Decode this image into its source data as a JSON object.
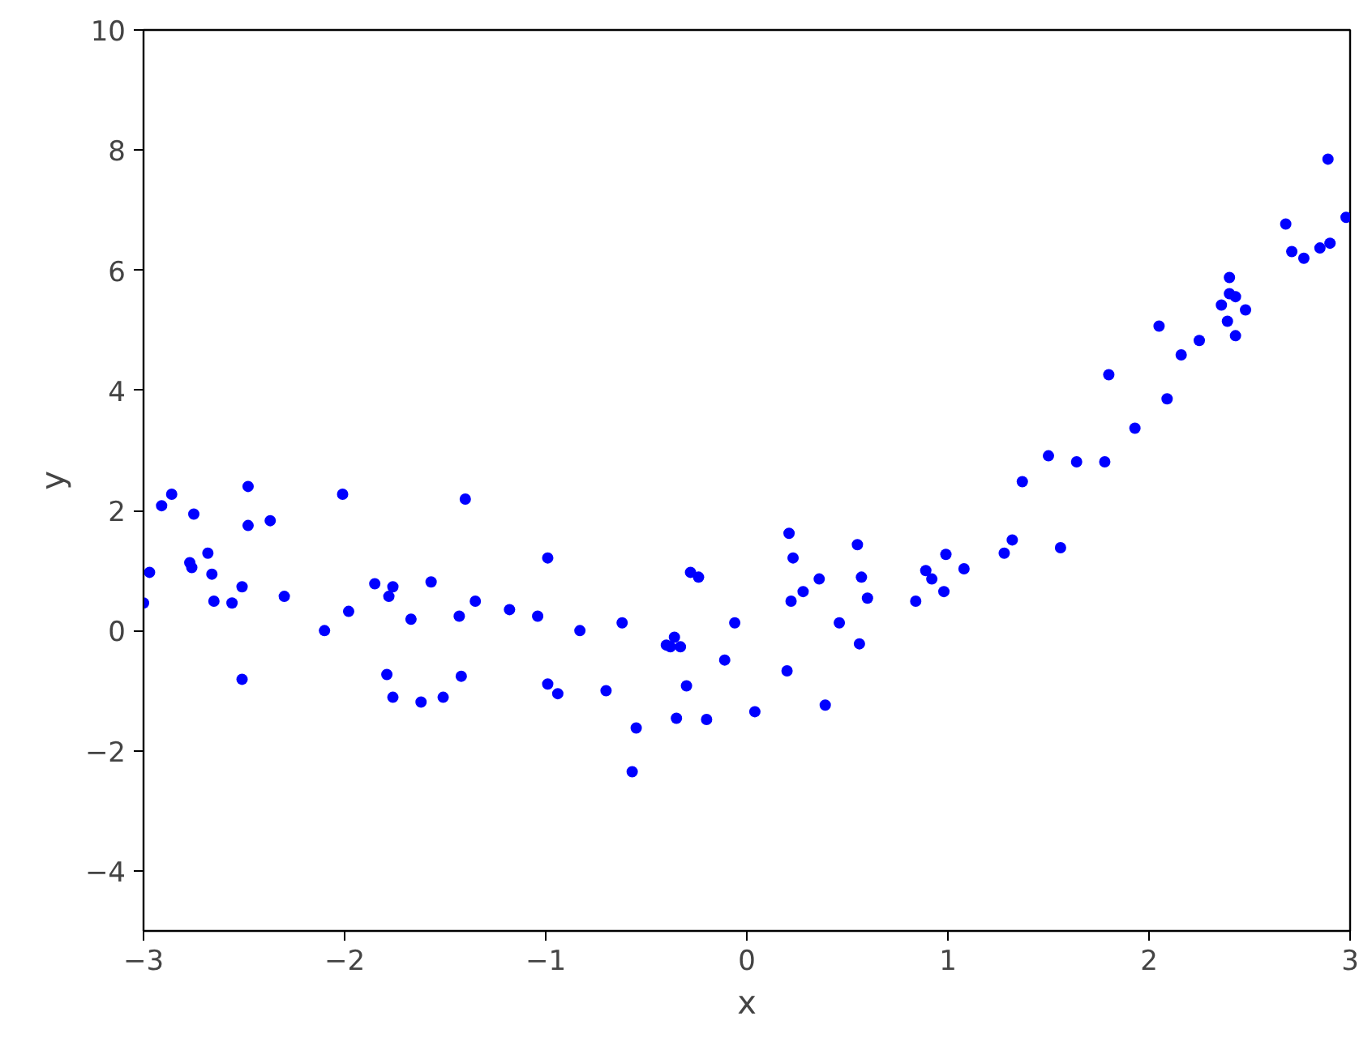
{
  "chart_data": {
    "type": "scatter",
    "xlabel": "x",
    "ylabel": "y",
    "xlim": [
      -3,
      3
    ],
    "ylim": [
      -5,
      10
    ],
    "xticks": [
      {
        "value": -3,
        "label": "−3"
      },
      {
        "value": -2,
        "label": "−2"
      },
      {
        "value": -1,
        "label": "−1"
      },
      0,
      1,
      2,
      3
    ],
    "yticks": [
      {
        "value": -4,
        "label": "−4"
      },
      {
        "value": -2,
        "label": "−2"
      },
      0,
      2,
      4,
      6,
      8,
      10
    ],
    "grid": false,
    "marker": "circle",
    "series": [
      {
        "color": "#0000ff",
        "x": [
          -3.0,
          -2.97,
          -2.91,
          -2.86,
          -2.75,
          -2.77,
          -2.76,
          -2.68,
          -2.66,
          -2.65,
          -2.56,
          -2.51,
          -2.51,
          -2.48,
          -2.48,
          -2.37,
          -2.3,
          -2.1,
          -2.01,
          -1.98,
          -1.85,
          -1.79,
          -1.78,
          -1.76,
          -1.76,
          -1.67,
          -1.62,
          -1.57,
          -1.51,
          -1.43,
          -1.42,
          -1.4,
          -1.35,
          -1.18,
          -1.04,
          -0.99,
          -0.99,
          -0.94,
          -0.83,
          -0.7,
          -0.62,
          -0.57,
          -0.55,
          -0.4,
          -0.36,
          -0.38,
          -0.33,
          -0.35,
          -0.3,
          -0.28,
          -0.24,
          -0.2,
          -0.11,
          -0.06,
          0.04,
          0.2,
          0.21,
          0.22,
          0.23,
          0.28,
          0.36,
          0.39,
          0.46,
          0.56,
          0.55,
          0.57,
          0.6,
          0.84,
          0.89,
          0.92,
          0.98,
          0.99,
          1.08,
          1.28,
          1.32,
          1.37,
          1.5,
          1.56,
          1.64,
          1.78,
          1.8,
          1.93,
          2.05,
          2.09,
          2.16,
          2.25,
          2.36,
          2.39,
          2.4,
          2.4,
          2.43,
          2.43,
          2.48,
          2.68,
          2.71,
          2.77,
          2.85,
          2.9,
          2.89,
          2.98
        ],
        "values": [
          0.46,
          0.97,
          2.08,
          2.27,
          1.94,
          1.13,
          1.05,
          1.29,
          0.94,
          0.49,
          0.46,
          0.73,
          -0.81,
          2.4,
          1.75,
          1.83,
          0.57,
          0.0,
          2.27,
          0.32,
          0.78,
          -0.73,
          0.57,
          0.73,
          -1.11,
          0.19,
          -1.19,
          0.81,
          -1.11,
          0.24,
          -0.76,
          2.19,
          0.49,
          0.35,
          0.24,
          1.21,
          -0.89,
          -1.05,
          0.0,
          -1.0,
          0.13,
          -2.35,
          -1.62,
          -0.24,
          -0.11,
          -0.27,
          -0.27,
          -1.46,
          -0.92,
          0.97,
          0.89,
          -1.48,
          -0.49,
          0.13,
          -1.35,
          -0.67,
          1.62,
          0.49,
          1.21,
          0.65,
          0.86,
          -1.24,
          0.13,
          -0.22,
          1.43,
          0.89,
          0.54,
          0.49,
          1.0,
          0.86,
          0.65,
          1.27,
          1.03,
          1.29,
          1.51,
          2.48,
          2.91,
          1.38,
          2.81,
          2.81,
          4.26,
          3.37,
          5.07,
          3.86,
          4.59,
          4.83,
          5.42,
          5.15,
          5.61,
          5.88,
          4.91,
          5.56,
          5.34,
          6.77,
          6.31,
          6.2,
          6.37,
          6.45,
          7.85,
          6.88
        ]
      }
    ]
  }
}
